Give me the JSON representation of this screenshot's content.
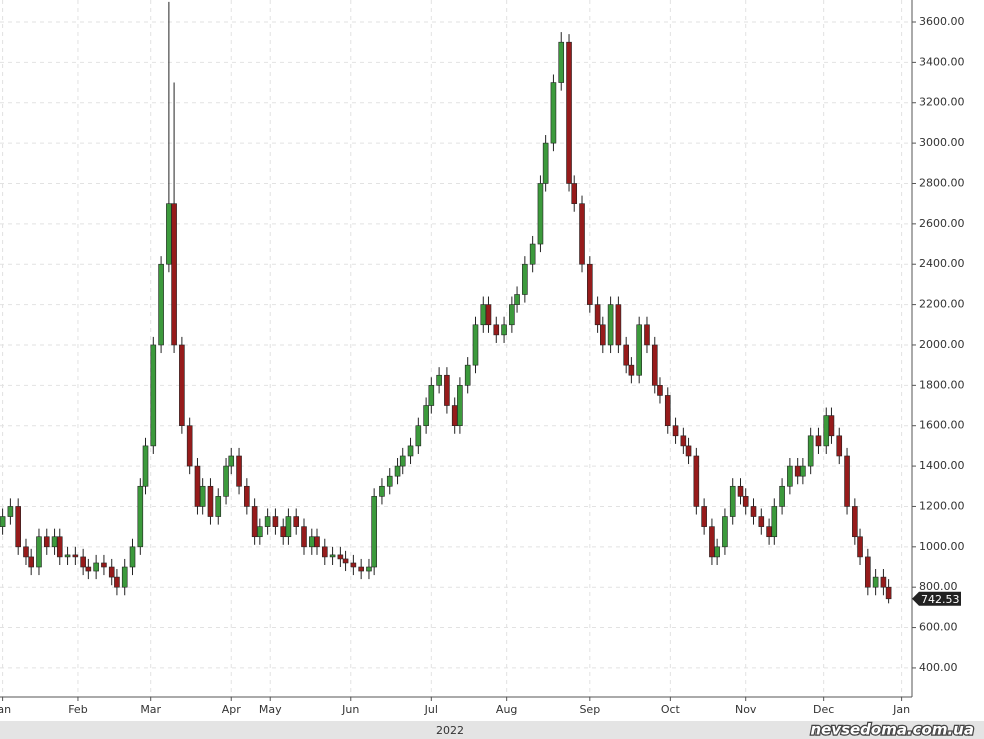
{
  "chart_data": {
    "type": "candlestick",
    "xlabel": "2022",
    "watermark": "nevsedoma.com.ua",
    "up_color": "#3c9a3c",
    "down_color": "#961b1b",
    "grid": true,
    "xlim": [
      0,
      351
    ],
    "ylim": [
      256,
      3709
    ],
    "xticks": [
      {
        "value": 1,
        "label": "Jan"
      },
      {
        "value": 30,
        "label": "Feb"
      },
      {
        "value": 58,
        "label": "Mar"
      },
      {
        "value": 89,
        "label": "Apr"
      },
      {
        "value": 104,
        "label": "May"
      },
      {
        "value": 135,
        "label": "Jun"
      },
      {
        "value": 166,
        "label": "Jul"
      },
      {
        "value": 195,
        "label": "Aug"
      },
      {
        "value": 227,
        "label": "Sep"
      },
      {
        "value": 258,
        "label": "Oct"
      },
      {
        "value": 287,
        "label": "Nov"
      },
      {
        "value": 317,
        "label": "Dec"
      },
      {
        "value": 347,
        "label": "Jan"
      }
    ],
    "yticks": [
      {
        "value": 400,
        "label": "400.00"
      },
      {
        "value": 600,
        "label": "600.00"
      },
      {
        "value": 800,
        "label": "800.00"
      },
      {
        "value": 1000,
        "label": "1000.00"
      },
      {
        "value": 1200,
        "label": "1200.00"
      },
      {
        "value": 1400,
        "label": "1400.00"
      },
      {
        "value": 1600,
        "label": "1600.00"
      },
      {
        "value": 1800,
        "label": "1800.00"
      },
      {
        "value": 2000,
        "label": "2000.00"
      },
      {
        "value": 2200,
        "label": "2200.00"
      },
      {
        "value": 2400,
        "label": "2400.00"
      },
      {
        "value": 2600,
        "label": "2600.00"
      },
      {
        "value": 2800,
        "label": "2800.00"
      },
      {
        "value": 3000,
        "label": "3000.00"
      },
      {
        "value": 3200,
        "label": "3200.00"
      },
      {
        "value": 3400,
        "label": "3400.00"
      },
      {
        "value": 3600,
        "label": "3600.00"
      }
    ],
    "x": [
      1,
      4,
      7,
      10,
      12,
      15,
      18,
      21,
      23,
      26,
      29,
      32,
      34,
      37,
      40,
      43,
      45,
      48,
      51,
      54,
      56,
      59,
      62,
      65,
      67,
      70,
      73,
      76,
      78,
      81,
      84,
      87,
      89,
      92,
      95,
      98,
      100,
      103,
      106,
      109,
      111,
      114,
      117,
      120,
      122,
      125,
      128,
      131,
      133,
      136,
      139,
      142,
      144,
      147,
      150,
      153,
      155,
      158,
      161,
      164,
      166,
      169,
      172,
      175,
      177,
      180,
      183,
      186,
      188,
      191,
      194,
      197,
      199,
      202,
      205,
      208,
      210,
      213,
      216,
      219,
      221,
      224,
      227,
      230,
      232,
      235,
      238,
      241,
      243,
      246,
      249,
      252,
      254,
      257,
      260,
      263,
      265,
      268,
      271,
      274,
      276,
      279,
      282,
      285,
      287,
      290,
      293,
      296,
      298,
      301,
      304,
      307,
      309,
      312,
      315,
      318,
      320,
      323,
      326,
      329,
      331,
      334,
      337,
      340,
      342
    ],
    "open": [
      1100,
      1150,
      1200,
      1000,
      950,
      900,
      1050,
      1000,
      1050,
      950,
      960,
      950,
      900,
      880,
      920,
      900,
      850,
      800,
      900,
      1000,
      1300,
      1500,
      2000,
      2400,
      2700,
      2000,
      1600,
      1400,
      1200,
      1300,
      1150,
      1250,
      1400,
      1450,
      1300,
      1200,
      1050,
      1100,
      1150,
      1100,
      1050,
      1150,
      1100,
      1000,
      1050,
      1000,
      950,
      960,
      940,
      920,
      900,
      880,
      900,
      1250,
      1300,
      1350,
      1400,
      1450,
      1500,
      1600,
      1700,
      1800,
      1850,
      1700,
      1600,
      1800,
      1900,
      2100,
      2200,
      2100,
      2050,
      2100,
      2200,
      2250,
      2400,
      2500,
      2800,
      3000,
      3300,
      3500,
      2800,
      2700,
      2400,
      2200,
      2100,
      2000,
      2200,
      2000,
      1900,
      1850,
      2100,
      2000,
      1800,
      1750,
      1600,
      1550,
      1500,
      1450,
      1200,
      1100,
      950,
      1000,
      1150,
      1300,
      1250,
      1200,
      1150,
      1100,
      1050,
      1200,
      1300,
      1400,
      1350,
      1400,
      1550,
      1500,
      1650,
      1550,
      1450,
      1200,
      1050,
      950,
      800,
      850,
      800
    ],
    "high": [
      1190,
      1240,
      1240,
      1040,
      990,
      1090,
      1090,
      1090,
      1090,
      1000,
      1000,
      990,
      940,
      960,
      960,
      940,
      890,
      940,
      1040,
      1340,
      1540,
      2040,
      2440,
      3700,
      3300,
      2040,
      1640,
      1440,
      1340,
      1340,
      1290,
      1440,
      1490,
      1490,
      1340,
      1240,
      1140,
      1190,
      1190,
      1140,
      1190,
      1190,
      1140,
      1090,
      1090,
      1040,
      1000,
      1000,
      980,
      960,
      940,
      940,
      1290,
      1340,
      1390,
      1440,
      1490,
      1540,
      1640,
      1740,
      1840,
      1890,
      1890,
      1740,
      1840,
      1940,
      2140,
      2240,
      2240,
      2140,
      2140,
      2240,
      2290,
      2440,
      2540,
      2840,
      3040,
      3340,
      3550,
      3540,
      2840,
      2740,
      2440,
      2240,
      2140,
      2240,
      2240,
      2040,
      1940,
      2140,
      2140,
      2040,
      1840,
      1790,
      1640,
      1590,
      1540,
      1490,
      1240,
      1140,
      1040,
      1190,
      1340,
      1340,
      1290,
      1240,
      1190,
      1140,
      1240,
      1340,
      1440,
      1440,
      1440,
      1590,
      1590,
      1690,
      1690,
      1590,
      1490,
      1240,
      1090,
      990,
      890,
      890,
      840
    ],
    "low": [
      1060,
      1110,
      960,
      910,
      860,
      860,
      960,
      960,
      910,
      910,
      910,
      860,
      840,
      840,
      860,
      810,
      760,
      760,
      860,
      960,
      1260,
      1460,
      1960,
      2360,
      1960,
      1560,
      1360,
      1160,
      1160,
      1110,
      1110,
      1210,
      1360,
      1260,
      1160,
      1010,
      1010,
      1060,
      1060,
      1010,
      1010,
      1060,
      960,
      960,
      960,
      910,
      910,
      900,
      880,
      860,
      840,
      840,
      860,
      1210,
      1260,
      1310,
      1360,
      1410,
      1460,
      1560,
      1660,
      1760,
      1660,
      1560,
      1560,
      1760,
      1860,
      2060,
      2060,
      2010,
      2010,
      2060,
      2160,
      2210,
      2360,
      2460,
      2760,
      2960,
      3260,
      2760,
      2660,
      2360,
      2160,
      2060,
      1960,
      1960,
      1960,
      1860,
      1810,
      1810,
      1960,
      1760,
      1710,
      1560,
      1510,
      1460,
      1410,
      1160,
      1060,
      910,
      910,
      960,
      1110,
      1210,
      1160,
      1110,
      1060,
      1010,
      1010,
      1160,
      1260,
      1310,
      1310,
      1360,
      1460,
      1460,
      1510,
      1410,
      1160,
      1010,
      910,
      760,
      760,
      760,
      720
    ],
    "close": [
      1150,
      1200,
      1000,
      950,
      900,
      1050,
      1000,
      1050,
      950,
      960,
      950,
      900,
      880,
      920,
      900,
      850,
      800,
      900,
      1000,
      1300,
      1500,
      2000,
      2400,
      2700,
      2000,
      1600,
      1400,
      1200,
      1300,
      1150,
      1250,
      1400,
      1450,
      1300,
      1200,
      1050,
      1100,
      1150,
      1100,
      1050,
      1150,
      1100,
      1000,
      1050,
      1000,
      950,
      960,
      940,
      920,
      900,
      880,
      900,
      1250,
      1300,
      1350,
      1400,
      1450,
      1500,
      1600,
      1700,
      1800,
      1850,
      1700,
      1600,
      1800,
      1900,
      2100,
      2200,
      2100,
      2050,
      2100,
      2200,
      2250,
      2400,
      2500,
      2800,
      3000,
      3300,
      3500,
      2800,
      2700,
      2400,
      2200,
      2100,
      2000,
      2200,
      2000,
      1900,
      1850,
      2100,
      2000,
      1800,
      1750,
      1600,
      1550,
      1500,
      1450,
      1200,
      1100,
      950,
      1000,
      1150,
      1300,
      1250,
      1200,
      1150,
      1100,
      1050,
      1200,
      1300,
      1400,
      1350,
      1400,
      1550,
      1500,
      1650,
      1550,
      1450,
      1200,
      1050,
      950,
      800,
      850,
      800,
      742.53
    ]
  }
}
